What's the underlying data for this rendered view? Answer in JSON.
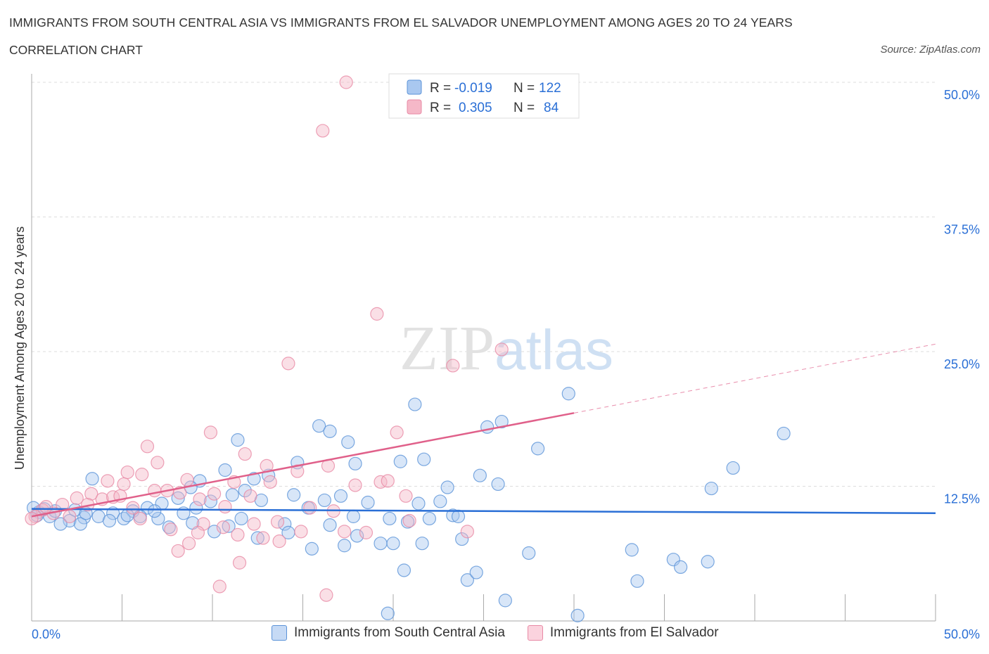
{
  "chart_data": {
    "type": "scatter",
    "title": "IMMIGRANTS FROM SOUTH CENTRAL ASIA VS IMMIGRANTS FROM EL SALVADOR UNEMPLOYMENT AMONG AGES 20 TO 24 YEARS",
    "subtitle": "CORRELATION CHART",
    "source": "Source: ZipAtlas.com",
    "xlabel": "",
    "ylabel": "Unemployment Among Ages 20 to 24 years",
    "xlim": [
      0,
      50
    ],
    "ylim": [
      0,
      50
    ],
    "x_tick_labels": [
      "0.0%",
      "50.0%"
    ],
    "y_ticks": [
      12.5,
      25.0,
      37.5,
      50.0
    ],
    "y_tick_labels": [
      "12.5%",
      "25.0%",
      "37.5%",
      "50.0%"
    ],
    "grid": true,
    "legend_placement": "top-center",
    "watermark": "ZIPatlas",
    "stats": [
      {
        "r_label": "R =",
        "r": "-0.019",
        "n_label": "N =",
        "n": "122"
      },
      {
        "r_label": "R =",
        "r": "0.305",
        "n_label": "N =",
        "n": "84"
      }
    ],
    "series": [
      {
        "name": "Immigrants from South Central Asia",
        "color": "#5b93d8",
        "fill": "#a9c8f0",
        "trend": {
          "x": [
            0,
            50
          ],
          "y": [
            10.4,
            10.0
          ],
          "solid_until": 50
        },
        "points": [
          [
            3.35,
            13.2
          ],
          [
            9.3,
            13.0
          ],
          [
            11.4,
            16.8
          ],
          [
            10.7,
            14.0
          ],
          [
            12.3,
            13.2
          ],
          [
            13.1,
            13.5
          ],
          [
            14.7,
            14.7
          ],
          [
            15.9,
            18.1
          ],
          [
            16.5,
            17.6
          ],
          [
            17.5,
            16.6
          ],
          [
            17.9,
            14.6
          ],
          [
            21.2,
            20.1
          ],
          [
            20.4,
            14.8
          ],
          [
            21.7,
            15.0
          ],
          [
            23.0,
            12.4
          ],
          [
            24.8,
            13.5
          ],
          [
            25.2,
            18.0
          ],
          [
            26.0,
            18.5
          ],
          [
            25.8,
            12.7
          ],
          [
            28.0,
            16.0
          ],
          [
            29.7,
            21.1
          ],
          [
            41.6,
            17.4
          ],
          [
            38.8,
            14.2
          ],
          [
            37.6,
            12.3
          ],
          [
            22.6,
            11.1
          ],
          [
            21.4,
            10.9
          ],
          [
            18.6,
            11.0
          ],
          [
            17.1,
            11.6
          ],
          [
            16.2,
            11.2
          ],
          [
            15.3,
            10.5
          ],
          [
            14.5,
            11.7
          ],
          [
            12.7,
            11.2
          ],
          [
            11.8,
            12.1
          ],
          [
            11.1,
            11.7
          ],
          [
            9.9,
            11.1
          ],
          [
            8.8,
            12.4
          ],
          [
            8.1,
            11.4
          ],
          [
            7.2,
            10.9
          ],
          [
            6.4,
            10.5
          ],
          [
            5.6,
            10.2
          ],
          [
            4.5,
            10.0
          ],
          [
            3.7,
            9.7
          ],
          [
            2.9,
            9.6
          ],
          [
            2.1,
            9.3
          ],
          [
            1.6,
            9.0
          ],
          [
            1.0,
            9.7
          ],
          [
            0.4,
            10.1
          ],
          [
            0.1,
            10.5
          ],
          [
            2.7,
            9.0
          ],
          [
            4.3,
            9.3
          ],
          [
            5.1,
            9.5
          ],
          [
            7.6,
            8.7
          ],
          [
            8.9,
            9.1
          ],
          [
            10.1,
            8.3
          ],
          [
            10.9,
            8.8
          ],
          [
            11.6,
            9.5
          ],
          [
            12.5,
            7.7
          ],
          [
            14.0,
            9.0
          ],
          [
            14.2,
            8.2
          ],
          [
            15.5,
            6.7
          ],
          [
            16.5,
            8.9
          ],
          [
            17.3,
            7.0
          ],
          [
            17.8,
            9.7
          ],
          [
            18.0,
            7.9
          ],
          [
            19.3,
            7.2
          ],
          [
            20.0,
            7.2
          ],
          [
            19.8,
            9.5
          ],
          [
            20.8,
            9.2
          ],
          [
            22.0,
            9.5
          ],
          [
            21.6,
            7.2
          ],
          [
            23.3,
            9.8
          ],
          [
            23.6,
            9.7
          ],
          [
            23.8,
            7.6
          ],
          [
            27.5,
            6.3
          ],
          [
            20.6,
            4.7
          ],
          [
            24.1,
            3.8
          ],
          [
            24.6,
            4.5
          ],
          [
            26.2,
            1.9
          ],
          [
            19.7,
            0.7
          ],
          [
            30.2,
            0.5
          ],
          [
            33.2,
            6.6
          ],
          [
            33.5,
            3.7
          ],
          [
            35.5,
            5.7
          ],
          [
            35.9,
            5.0
          ],
          [
            37.4,
            5.5
          ],
          [
            8.4,
            10.0
          ],
          [
            9.1,
            10.5
          ],
          [
            6.0,
            9.7
          ],
          [
            7.0,
            9.5
          ],
          [
            0.3,
            9.8
          ],
          [
            1.3,
            10.2
          ],
          [
            0.7,
            10.4
          ],
          [
            2.4,
            10.3
          ],
          [
            3.0,
            10.0
          ],
          [
            5.3,
            9.8
          ],
          [
            6.8,
            10.2
          ]
        ]
      },
      {
        "name": "Immigrants from El Salvador",
        "color": "#e88aa5",
        "fill": "#f5b8c8",
        "trend": {
          "x": [
            0,
            50
          ],
          "y": [
            9.7,
            25.7
          ],
          "solid_until": 30
        },
        "points": [
          [
            17.4,
            50.0
          ],
          [
            16.1,
            45.5
          ],
          [
            19.1,
            28.5
          ],
          [
            26.0,
            25.2
          ],
          [
            14.2,
            23.9
          ],
          [
            23.3,
            23.7
          ],
          [
            9.9,
            17.5
          ],
          [
            20.2,
            17.5
          ],
          [
            6.4,
            16.2
          ],
          [
            11.8,
            15.5
          ],
          [
            6.96,
            14.7
          ],
          [
            13.0,
            14.4
          ],
          [
            16.4,
            14.4
          ],
          [
            5.3,
            13.8
          ],
          [
            6.1,
            13.6
          ],
          [
            4.2,
            13.0
          ],
          [
            8.6,
            13.1
          ],
          [
            5.1,
            12.7
          ],
          [
            11.2,
            12.9
          ],
          [
            17.9,
            12.6
          ],
          [
            19.3,
            12.9
          ],
          [
            19.7,
            13.0
          ],
          [
            14.7,
            13.9
          ],
          [
            13.2,
            12.9
          ],
          [
            20.7,
            11.6
          ],
          [
            6.8,
            12.1
          ],
          [
            7.5,
            12.1
          ],
          [
            3.3,
            11.8
          ],
          [
            2.5,
            11.4
          ],
          [
            3.9,
            11.3
          ],
          [
            4.5,
            11.5
          ],
          [
            4.9,
            11.6
          ],
          [
            10.1,
            11.8
          ],
          [
            8.2,
            11.9
          ],
          [
            12.1,
            11.6
          ],
          [
            9.3,
            11.3
          ],
          [
            1.7,
            10.8
          ],
          [
            3.1,
            10.8
          ],
          [
            5.6,
            10.5
          ],
          [
            0.6,
            10.3
          ],
          [
            0.2,
            9.7
          ],
          [
            1.2,
            10.0
          ],
          [
            2.1,
            9.7
          ],
          [
            6.0,
            9.5
          ],
          [
            10.7,
            10.6
          ],
          [
            15.4,
            10.5
          ],
          [
            16.7,
            10.2
          ],
          [
            20.9,
            9.3
          ],
          [
            13.6,
            9.2
          ],
          [
            12.3,
            9.0
          ],
          [
            10.6,
            8.7
          ],
          [
            9.5,
            9.0
          ],
          [
            7.7,
            8.5
          ],
          [
            9.2,
            8.2
          ],
          [
            11.4,
            8.0
          ],
          [
            12.8,
            7.7
          ],
          [
            14.9,
            8.3
          ],
          [
            17.3,
            8.3
          ],
          [
            18.5,
            8.2
          ],
          [
            24.1,
            8.3
          ],
          [
            8.7,
            7.2
          ],
          [
            13.7,
            7.4
          ],
          [
            8.1,
            6.5
          ],
          [
            11.5,
            5.4
          ],
          [
            10.4,
            3.2
          ],
          [
            16.3,
            2.4
          ],
          [
            0.0,
            9.5
          ],
          [
            0.8,
            10.6
          ]
        ]
      }
    ]
  }
}
